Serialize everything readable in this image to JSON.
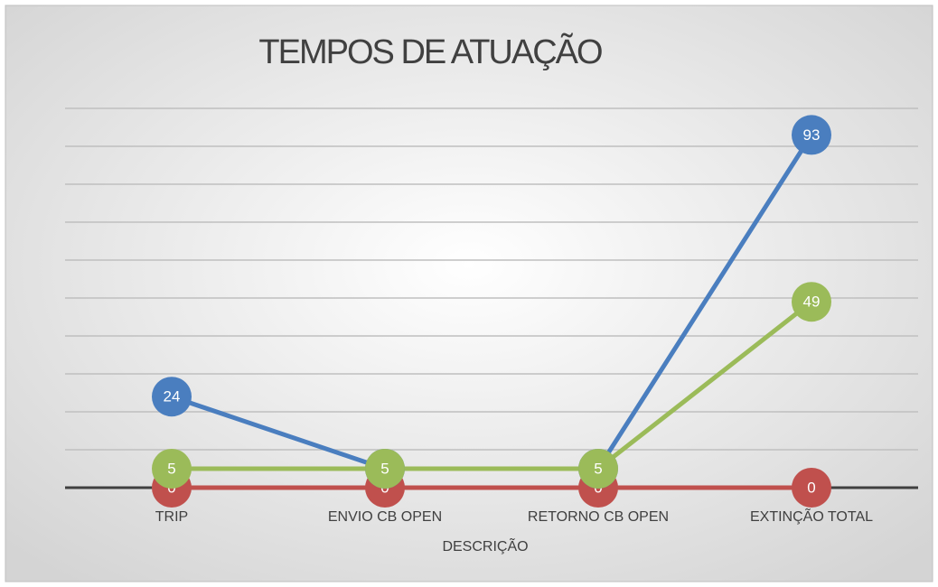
{
  "chart_data": {
    "type": "line",
    "title": "TEMPOS DE ATUAÇÃO",
    "x_label": "DESCRIÇÃO",
    "categories": [
      "TRIP",
      "ENVIO CB OPEN",
      "RETORNO CB OPEN",
      "EXTINÇÃO TOTAL"
    ],
    "series": [
      {
        "color": "#c0504d",
        "values": [
          0,
          0,
          0,
          0
        ]
      },
      {
        "color": "#4a7ebf",
        "values": [
          24,
          5,
          5,
          93
        ]
      },
      {
        "color": "#9bbb59",
        "values": [
          5,
          5,
          5,
          49
        ]
      }
    ],
    "ylim": [
      0,
      100
    ],
    "yticks": [
      0,
      10,
      20,
      30,
      40,
      50,
      60,
      70,
      80,
      90,
      100
    ],
    "grid": true
  }
}
